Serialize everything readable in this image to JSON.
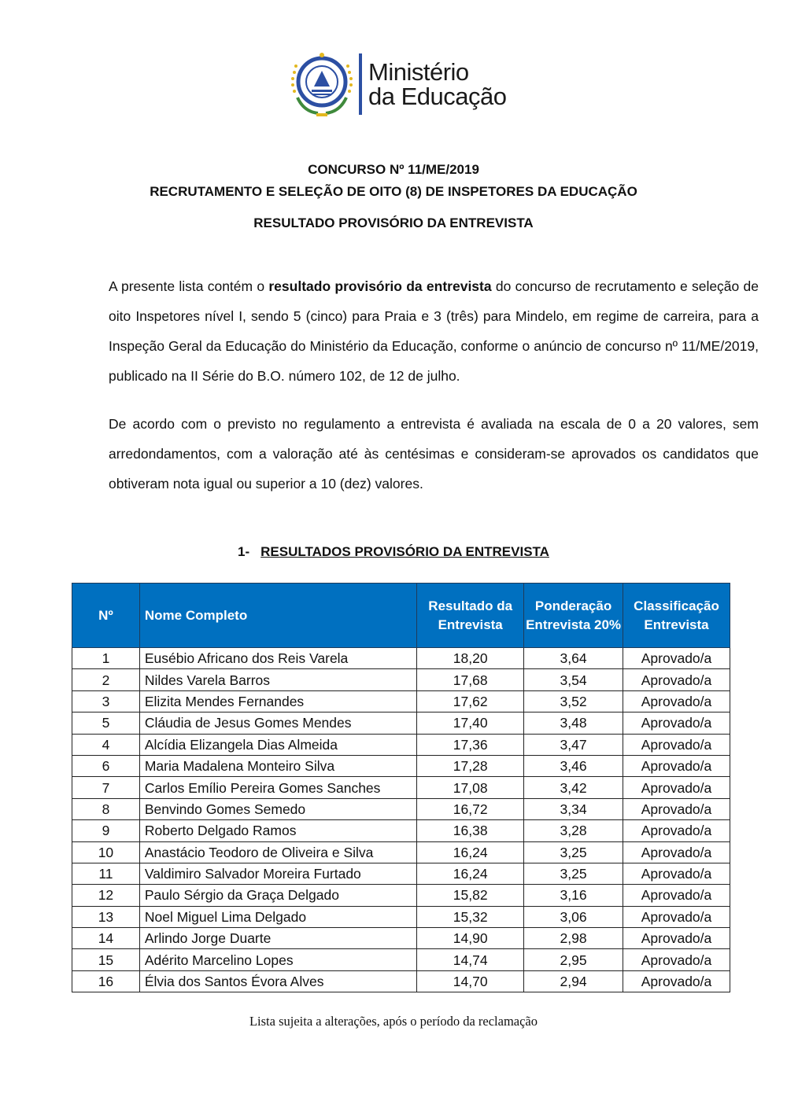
{
  "logo": {
    "line1": "Ministério",
    "line2": "da Educação",
    "emblem_text": "REPÚBLICA DE CABO VERDE",
    "brand_color": "#2c4fa3"
  },
  "heading": {
    "line1": "CONCURSO Nº 11/ME/2019",
    "line2": "RECRUTAMENTO E SELEÇÃO DE OITO (8) DE INSPETORES DA EDUCAÇÃO",
    "line3": "RESULTADO PROVISÓRIO DA ENTREVISTA"
  },
  "paragraph1": {
    "before": "A presente lista contém o ",
    "bold": "resultado provisório da entrevista",
    "after": " do concurso de recrutamento e seleção de oito Inspetores nível I, sendo 5 (cinco) para Praia e 3 (três) para Mindelo, em regime de carreira, para a Inspeção Geral da Educação do Ministério da Educação, conforme o anúncio de concurso nº 11/ME/2019, publicado na II Série do B.O. número 102, de 12 de julho."
  },
  "paragraph2": "De acordo com o previsto no regulamento a entrevista é avaliada na escala de 0 a 20 valores, sem arredondamentos, com a valoração até às centésimas e consideram-se aprovados os candidatos que obtiveram nota igual ou superior a 10 (dez) valores.",
  "section": {
    "number": "1-",
    "title": "RESULTADOS PROVISÓRIO DA ENTREVISTA"
  },
  "table": {
    "header_color": "#0070c0",
    "headers": [
      "Nº",
      "Nome Completo",
      "Resultado da Entrevista",
      "Ponderação Entrevista 20%",
      "Classificação Entrevista"
    ],
    "rows": [
      [
        "1",
        "Eusébio Africano dos Reis Varela",
        "18,20",
        "3,64",
        "Aprovado/a"
      ],
      [
        "2",
        "Nildes Varela Barros",
        "17,68",
        "3,54",
        "Aprovado/a"
      ],
      [
        "3",
        "Elizita Mendes Fernandes",
        "17,62",
        "3,52",
        "Aprovado/a"
      ],
      [
        "5",
        "Cláudia de Jesus Gomes Mendes",
        "17,40",
        "3,48",
        "Aprovado/a"
      ],
      [
        "4",
        "Alcídia Elizangela Dias Almeida",
        "17,36",
        "3,47",
        "Aprovado/a"
      ],
      [
        "6",
        "Maria Madalena Monteiro Silva",
        "17,28",
        "3,46",
        "Aprovado/a"
      ],
      [
        "7",
        "Carlos Emílio Pereira Gomes Sanches",
        "17,08",
        "3,42",
        "Aprovado/a"
      ],
      [
        "8",
        "Benvindo Gomes Semedo",
        "16,72",
        "3,34",
        "Aprovado/a"
      ],
      [
        "9",
        "Roberto Delgado Ramos",
        "16,38",
        "3,28",
        "Aprovado/a"
      ],
      [
        "10",
        "Anastácio Teodoro de Oliveira e Silva",
        "16,24",
        "3,25",
        "Aprovado/a"
      ],
      [
        "11",
        "Valdimiro Salvador Moreira Furtado",
        "16,24",
        "3,25",
        "Aprovado/a"
      ],
      [
        "12",
        "Paulo Sérgio da Graça Delgado",
        "15,82",
        "3,16",
        "Aprovado/a"
      ],
      [
        "13",
        "Noel Miguel Lima Delgado",
        "15,32",
        "3,06",
        "Aprovado/a"
      ],
      [
        "14",
        "Arlindo Jorge Duarte",
        "14,90",
        "2,98",
        "Aprovado/a"
      ],
      [
        "15",
        "Adérito Marcelino Lopes",
        "14,74",
        "2,95",
        "Aprovado/a"
      ],
      [
        "16",
        "Élvia dos Santos Évora Alves",
        "14,70",
        "2,94",
        "Aprovado/a"
      ]
    ]
  },
  "footer": "Lista sujeita a alterações, após o período da reclamação"
}
